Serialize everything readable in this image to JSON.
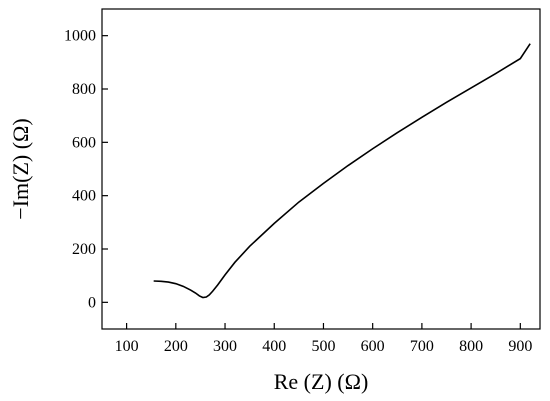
{
  "chart_data": {
    "type": "line",
    "title": "",
    "xlabel": "Re (Z) (Ω)",
    "ylabel": "−Im(Z) (Ω)",
    "xlim": [
      50,
      940
    ],
    "ylim": [
      -100,
      1100
    ],
    "xticks": [
      100,
      200,
      300,
      400,
      500,
      600,
      700,
      800,
      900
    ],
    "yticks": [
      0,
      200,
      400,
      600,
      800,
      1000
    ],
    "grid": false,
    "legend": "none",
    "line_color": "#000000",
    "series": [
      {
        "x": [
          155,
          170,
          185,
          200,
          215,
          230,
          240,
          248,
          255,
          262,
          268,
          275,
          285,
          300,
          320,
          350,
          400,
          450,
          500,
          550,
          600,
          650,
          700,
          750,
          800,
          850,
          900,
          920
        ],
        "y": [
          80,
          79,
          76,
          70,
          60,
          46,
          35,
          24,
          18,
          20,
          28,
          42,
          65,
          103,
          150,
          210,
          296,
          376,
          446,
          513,
          576,
          636,
          694,
          750,
          804,
          858,
          914,
          970
        ]
      }
    ]
  }
}
